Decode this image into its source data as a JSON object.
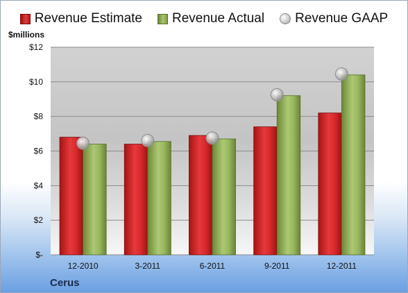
{
  "legend": {
    "estimate": "Revenue Estimate",
    "actual": "Revenue Actual",
    "gaap": "Revenue GAAP"
  },
  "unit_label": "$millions",
  "company": "Cerus",
  "colors": {
    "estimate": "#c8202a",
    "actual": "#8fae56",
    "gaap": "#c8c8c8"
  },
  "chart_data": {
    "type": "bar",
    "categories": [
      "12-2010",
      "3-2011",
      "6-2011",
      "9-2011",
      "12-2011"
    ],
    "series": [
      {
        "name": "Revenue Estimate",
        "values": [
          6.8,
          6.4,
          6.9,
          7.4,
          8.2
        ]
      },
      {
        "name": "Revenue Actual",
        "values": [
          6.4,
          6.55,
          6.7,
          9.2,
          10.4
        ]
      },
      {
        "name": "Revenue GAAP",
        "values": [
          6.45,
          6.6,
          6.75,
          9.25,
          10.45
        ]
      }
    ],
    "ylabel": "$millions",
    "ylim": [
      0,
      12
    ],
    "yticks": [
      0,
      2,
      4,
      6,
      8,
      10,
      12
    ],
    "ytick_labels": [
      "$-",
      "$2",
      "$4",
      "$6",
      "$8",
      "$10",
      "$12"
    ],
    "grid": true,
    "legend_position": "top"
  }
}
